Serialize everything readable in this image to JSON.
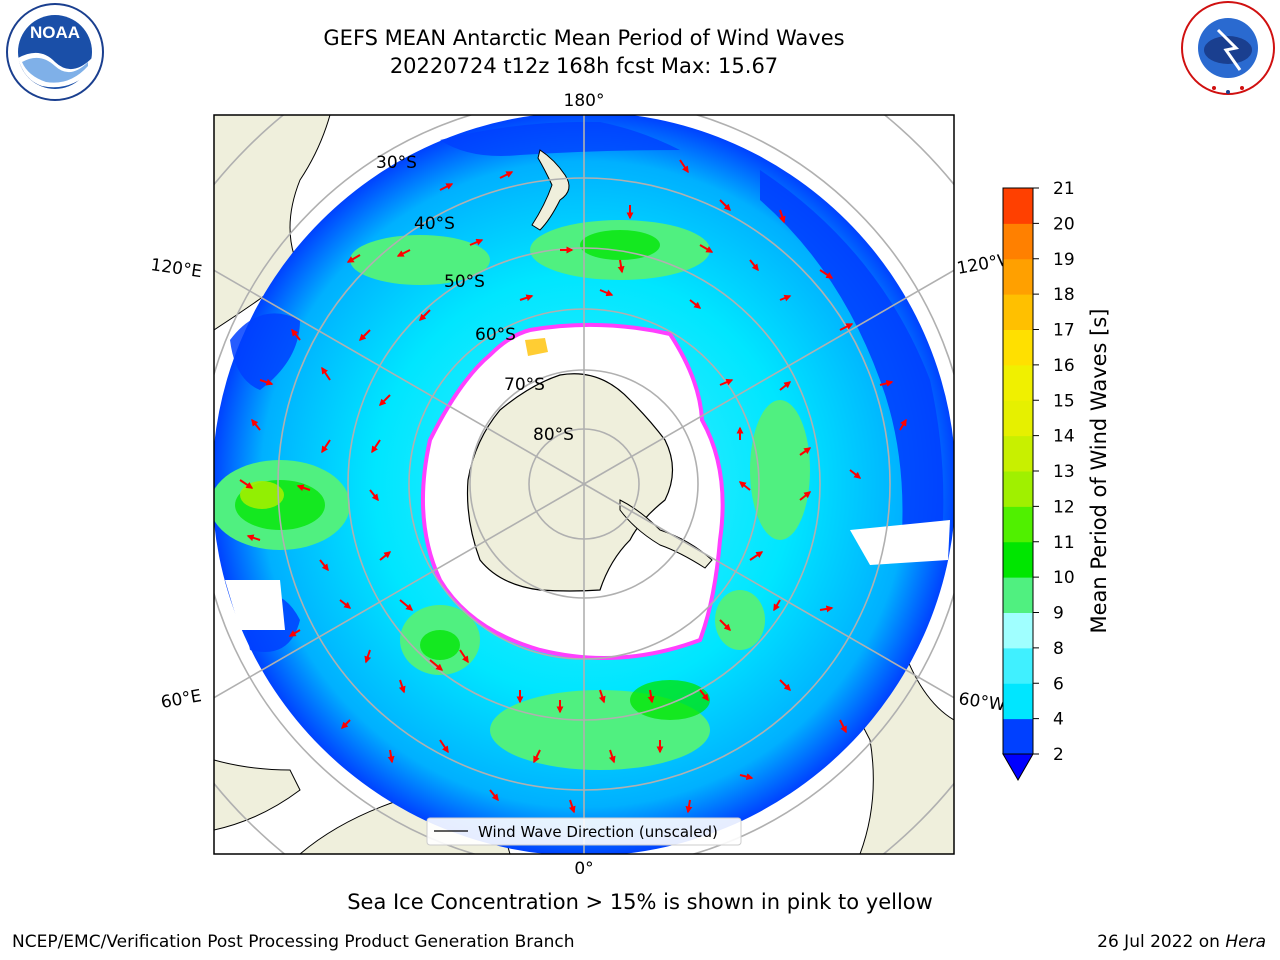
{
  "header": {
    "title_line1": "GEFS MEAN Antarctic Mean Period of Wind Waves",
    "title_line2": "20220724 t12z 168h fcst   Max: 15.67"
  },
  "logos": {
    "left": "NOAA",
    "left_ring_text": "NATIONAL OCEANIC AND ATMOSPHERIC ADMINISTRATION · U.S. DEPARTMENT OF COMMERCE",
    "right_ring_text": "NATIONAL WEATHER SERVICE"
  },
  "map": {
    "projection": "south-polar-stereographic",
    "meridian_labels": {
      "top": "180°",
      "bottom": "0°",
      "upper_left": "120°E",
      "upper_right": "120°W",
      "lower_left": "60°E",
      "lower_right": "60°W"
    },
    "latitude_labels": [
      "30°S",
      "40°S",
      "50°S",
      "60°S",
      "70°S",
      "80°S"
    ],
    "legend_label": "Wind Wave Direction (unscaled)",
    "max_value": 15.67
  },
  "colorbar": {
    "label": "Mean Period of Wind Waves [s]",
    "ticks": [
      "2",
      "4",
      "6",
      "8",
      "9",
      "10",
      "11",
      "12",
      "13",
      "14",
      "15",
      "16",
      "17",
      "18",
      "19",
      "20",
      "21"
    ],
    "colors": [
      "#0040ff",
      "#00e6ff",
      "#40f0ff",
      "#a0ffff",
      "#50f080",
      "#00e600",
      "#50f000",
      "#a0f000",
      "#c8f000",
      "#e6f000",
      "#f0f000",
      "#ffe000",
      "#ffc000",
      "#ffa000",
      "#ff8000",
      "#ff4000",
      "#ff0000"
    ],
    "under_color": "#0000ff"
  },
  "footer": {
    "note": "Sea Ice Concentration > 15% is shown in pink to yellow",
    "credit": "NCEP/EMC/Verification Post Processing Product Generation Branch",
    "date": "26 Jul 2022 on ",
    "host": "Hera"
  }
}
